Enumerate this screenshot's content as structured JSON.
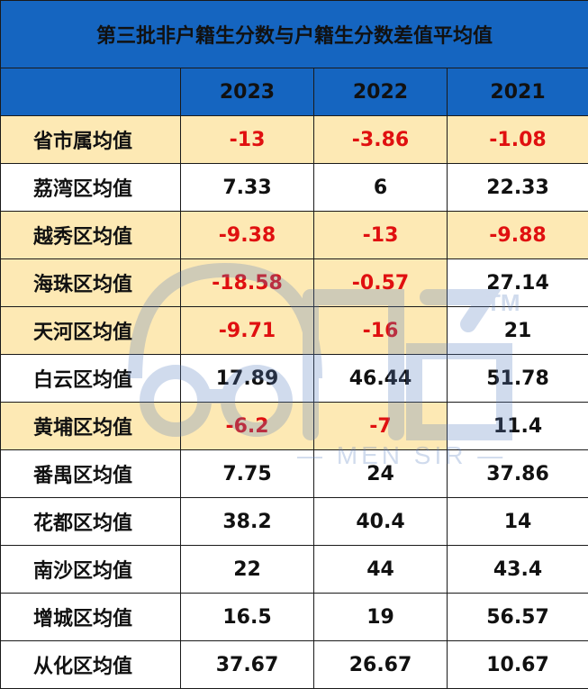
{
  "title": "第三批非户籍生分数与户籍生分数差值平均值",
  "columns": [
    "",
    "2023",
    "2022",
    "2021"
  ],
  "rows": [
    {
      "name": "省市属均值",
      "values": [
        "-13",
        "-3.86",
        "-1.08"
      ],
      "hl": [
        true,
        true,
        true,
        true
      ],
      "neg": [
        true,
        true,
        true
      ]
    },
    {
      "name": "荔湾区均值",
      "values": [
        "7.33",
        "6",
        "22.33"
      ],
      "hl": [
        false,
        false,
        false,
        false
      ],
      "neg": [
        false,
        false,
        false
      ]
    },
    {
      "name": "越秀区均值",
      "values": [
        "-9.38",
        "-13",
        "-9.88"
      ],
      "hl": [
        true,
        true,
        true,
        true
      ],
      "neg": [
        true,
        true,
        true
      ]
    },
    {
      "name": "海珠区均值",
      "values": [
        "-18.58",
        "-0.57",
        "27.14"
      ],
      "hl": [
        true,
        true,
        true,
        false
      ],
      "neg": [
        true,
        true,
        false
      ]
    },
    {
      "name": "天河区均值",
      "values": [
        "-9.71",
        "-16",
        "21"
      ],
      "hl": [
        true,
        true,
        true,
        false
      ],
      "neg": [
        true,
        true,
        false
      ]
    },
    {
      "name": "白云区均值",
      "values": [
        "17.89",
        "46.44",
        "51.78"
      ],
      "hl": [
        false,
        false,
        false,
        false
      ],
      "neg": [
        false,
        false,
        false
      ]
    },
    {
      "name": "黄埔区均值",
      "values": [
        "-6.2",
        "-7",
        "11.4"
      ],
      "hl": [
        true,
        true,
        true,
        false
      ],
      "neg": [
        true,
        true,
        false
      ]
    },
    {
      "name": "番禺区均值",
      "values": [
        "7.75",
        "24",
        "37.86"
      ],
      "hl": [
        false,
        false,
        false,
        false
      ],
      "neg": [
        false,
        false,
        false
      ]
    },
    {
      "name": "花都区均值",
      "values": [
        "38.2",
        "40.4",
        "14"
      ],
      "hl": [
        false,
        false,
        false,
        false
      ],
      "neg": [
        false,
        false,
        false
      ]
    },
    {
      "name": "南沙区均值",
      "values": [
        "22",
        "44",
        "43.4"
      ],
      "hl": [
        false,
        false,
        false,
        false
      ],
      "neg": [
        false,
        false,
        false
      ]
    },
    {
      "name": "增城区均值",
      "values": [
        "16.5",
        "19",
        "56.57"
      ],
      "hl": [
        false,
        false,
        false,
        false
      ],
      "neg": [
        false,
        false,
        false
      ]
    },
    {
      "name": "从化区均值",
      "values": [
        "37.67",
        "26.67",
        "10.67"
      ],
      "hl": [
        false,
        false,
        false,
        false
      ],
      "neg": [
        false,
        false,
        false
      ]
    }
  ],
  "colors": {
    "header_bg": "#1565c0",
    "highlight_bg": "#fde9b4",
    "negative_text": "#e01010"
  },
  "watermark": {
    "brand": "门爸",
    "tm": "TM",
    "tagline": "— MEN SIR —"
  }
}
